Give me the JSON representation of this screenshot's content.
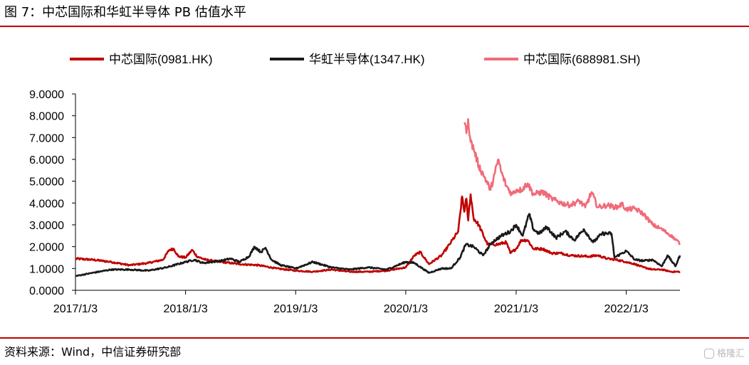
{
  "figure": {
    "title": "图 7：中芯国际和华虹半导体 PB 估值水平",
    "source": "资料来源：Wind，中信证券研究部",
    "watermark": "格隆汇"
  },
  "chart_data": {
    "type": "line",
    "title": "",
    "xlabel": "",
    "ylabel": "",
    "ylim": [
      0,
      9
    ],
    "yticks": [
      "0.0000",
      "1.0000",
      "2.0000",
      "3.0000",
      "4.0000",
      "5.0000",
      "6.0000",
      "7.0000",
      "8.0000",
      "9.0000"
    ],
    "xlim": [
      "2017-01-03",
      "2022-06-30"
    ],
    "xticks": [
      "2017/1/3",
      "2018/1/3",
      "2019/1/3",
      "2020/1/3",
      "2021/1/3",
      "2022/1/3"
    ],
    "grid": false,
    "legend": "top",
    "series": [
      {
        "name": "中芯国际(0981.HK)",
        "color": "#c00000",
        "points": [
          [
            "2017-01-03",
            1.45
          ],
          [
            "2017-03-01",
            1.4
          ],
          [
            "2017-05-01",
            1.3
          ],
          [
            "2017-07-01",
            1.15
          ],
          [
            "2017-09-01",
            1.25
          ],
          [
            "2017-10-20",
            1.4
          ],
          [
            "2017-11-10",
            1.85
          ],
          [
            "2017-11-25",
            1.9
          ],
          [
            "2017-12-10",
            1.55
          ],
          [
            "2018-01-03",
            1.5
          ],
          [
            "2018-01-25",
            1.85
          ],
          [
            "2018-02-10",
            1.55
          ],
          [
            "2018-03-10",
            1.4
          ],
          [
            "2018-05-01",
            1.3
          ],
          [
            "2018-07-01",
            1.2
          ],
          [
            "2018-09-01",
            1.15
          ],
          [
            "2018-11-01",
            1.0
          ],
          [
            "2019-01-03",
            0.9
          ],
          [
            "2019-03-01",
            0.85
          ],
          [
            "2019-05-01",
            0.95
          ],
          [
            "2019-07-01",
            0.85
          ],
          [
            "2019-09-01",
            0.85
          ],
          [
            "2019-11-01",
            0.9
          ],
          [
            "2020-01-03",
            1.05
          ],
          [
            "2020-02-01",
            1.6
          ],
          [
            "2020-02-20",
            1.75
          ],
          [
            "2020-03-20",
            1.2
          ],
          [
            "2020-05-01",
            1.6
          ],
          [
            "2020-06-01",
            2.2
          ],
          [
            "2020-06-25",
            2.7
          ],
          [
            "2020-07-08",
            4.3
          ],
          [
            "2020-07-15",
            3.6
          ],
          [
            "2020-07-22",
            4.2
          ],
          [
            "2020-07-28",
            3.2
          ],
          [
            "2020-08-05",
            4.4
          ],
          [
            "2020-08-15",
            3.3
          ],
          [
            "2020-09-01",
            3.0
          ],
          [
            "2020-09-20",
            2.4
          ],
          [
            "2020-10-01",
            2.1
          ],
          [
            "2020-11-01",
            2.1
          ],
          [
            "2020-12-01",
            2.2
          ],
          [
            "2020-12-15",
            1.7
          ],
          [
            "2021-01-03",
            1.9
          ],
          [
            "2021-01-20",
            2.3
          ],
          [
            "2021-02-10",
            2.3
          ],
          [
            "2021-03-01",
            1.9
          ],
          [
            "2021-04-01",
            1.9
          ],
          [
            "2021-05-01",
            1.7
          ],
          [
            "2021-06-01",
            1.7
          ],
          [
            "2021-07-01",
            1.6
          ],
          [
            "2021-09-01",
            1.55
          ],
          [
            "2021-10-01",
            1.6
          ],
          [
            "2021-11-01",
            1.45
          ],
          [
            "2021-12-01",
            1.4
          ],
          [
            "2022-01-03",
            1.3
          ],
          [
            "2022-02-01",
            1.2
          ],
          [
            "2022-03-01",
            1.05
          ],
          [
            "2022-04-01",
            0.95
          ],
          [
            "2022-05-01",
            0.95
          ],
          [
            "2022-06-01",
            0.85
          ],
          [
            "2022-06-30",
            0.85
          ]
        ]
      },
      {
        "name": "华虹半导体(1347.HK)",
        "color": "#1a1a1a",
        "points": [
          [
            "2017-01-03",
            0.65
          ],
          [
            "2017-03-01",
            0.8
          ],
          [
            "2017-05-01",
            0.95
          ],
          [
            "2017-07-01",
            0.95
          ],
          [
            "2017-09-01",
            0.9
          ],
          [
            "2017-11-01",
            1.05
          ],
          [
            "2018-01-03",
            1.3
          ],
          [
            "2018-02-01",
            1.4
          ],
          [
            "2018-03-01",
            1.25
          ],
          [
            "2018-05-01",
            1.35
          ],
          [
            "2018-06-01",
            1.45
          ],
          [
            "2018-07-01",
            1.3
          ],
          [
            "2018-08-01",
            1.55
          ],
          [
            "2018-08-20",
            2.0
          ],
          [
            "2018-09-10",
            1.75
          ],
          [
            "2018-09-25",
            1.95
          ],
          [
            "2018-10-15",
            1.4
          ],
          [
            "2018-11-15",
            1.15
          ],
          [
            "2019-01-03",
            1.0
          ],
          [
            "2019-03-01",
            1.3
          ],
          [
            "2019-05-01",
            1.05
          ],
          [
            "2019-07-01",
            0.95
          ],
          [
            "2019-09-01",
            1.05
          ],
          [
            "2019-11-01",
            0.95
          ],
          [
            "2020-01-03",
            1.3
          ],
          [
            "2020-02-01",
            1.25
          ],
          [
            "2020-03-20",
            0.8
          ],
          [
            "2020-05-01",
            1.0
          ],
          [
            "2020-06-01",
            1.0
          ],
          [
            "2020-07-01",
            1.5
          ],
          [
            "2020-07-20",
            2.1
          ],
          [
            "2020-08-15",
            2.0
          ],
          [
            "2020-09-15",
            1.6
          ],
          [
            "2020-10-15",
            2.2
          ],
          [
            "2020-11-15",
            2.5
          ],
          [
            "2020-12-15",
            2.7
          ],
          [
            "2021-01-03",
            3.0
          ],
          [
            "2021-01-25",
            2.5
          ],
          [
            "2021-02-15",
            3.5
          ],
          [
            "2021-03-01",
            2.8
          ],
          [
            "2021-03-20",
            2.6
          ],
          [
            "2021-04-15",
            2.9
          ],
          [
            "2021-05-15",
            2.4
          ],
          [
            "2021-06-15",
            2.7
          ],
          [
            "2021-07-15",
            2.3
          ],
          [
            "2021-08-15",
            2.8
          ],
          [
            "2021-09-15",
            2.2
          ],
          [
            "2021-10-15",
            2.6
          ],
          [
            "2021-11-15",
            2.6
          ],
          [
            "2021-11-25",
            1.5
          ],
          [
            "2021-12-20",
            1.7
          ],
          [
            "2022-01-03",
            1.8
          ],
          [
            "2022-02-01",
            1.4
          ],
          [
            "2022-03-01",
            1.35
          ],
          [
            "2022-04-01",
            1.4
          ],
          [
            "2022-05-01",
            1.1
          ],
          [
            "2022-05-20",
            1.6
          ],
          [
            "2022-06-15",
            1.1
          ],
          [
            "2022-06-30",
            1.6
          ]
        ]
      },
      {
        "name": "中芯国际(688981.SH)",
        "color": "#f06b7a",
        "points": [
          [
            "2020-07-16",
            7.7
          ],
          [
            "2020-07-22",
            7.2
          ],
          [
            "2020-07-28",
            7.85
          ],
          [
            "2020-08-05",
            6.8
          ],
          [
            "2020-08-15",
            6.5
          ],
          [
            "2020-09-01",
            5.7
          ],
          [
            "2020-09-20",
            5.2
          ],
          [
            "2020-10-10",
            4.6
          ],
          [
            "2020-10-25",
            5.4
          ],
          [
            "2020-11-05",
            6.0
          ],
          [
            "2020-11-15",
            5.4
          ],
          [
            "2020-12-01",
            4.8
          ],
          [
            "2020-12-20",
            4.4
          ],
          [
            "2021-01-03",
            4.6
          ],
          [
            "2021-01-20",
            4.6
          ],
          [
            "2021-02-10",
            4.9
          ],
          [
            "2021-03-01",
            4.4
          ],
          [
            "2021-04-01",
            4.5
          ],
          [
            "2021-05-01",
            4.2
          ],
          [
            "2021-06-01",
            4.0
          ],
          [
            "2021-07-01",
            3.9
          ],
          [
            "2021-08-01",
            4.1
          ],
          [
            "2021-08-20",
            3.8
          ],
          [
            "2021-09-10",
            4.5
          ],
          [
            "2021-10-01",
            3.8
          ],
          [
            "2021-11-01",
            3.9
          ],
          [
            "2021-12-01",
            3.8
          ],
          [
            "2021-12-20",
            3.95
          ],
          [
            "2022-01-03",
            3.7
          ],
          [
            "2022-02-01",
            3.75
          ],
          [
            "2022-03-01",
            3.5
          ],
          [
            "2022-04-01",
            3.0
          ],
          [
            "2022-05-01",
            2.8
          ],
          [
            "2022-06-01",
            2.5
          ],
          [
            "2022-06-30",
            2.15
          ]
        ]
      }
    ]
  }
}
